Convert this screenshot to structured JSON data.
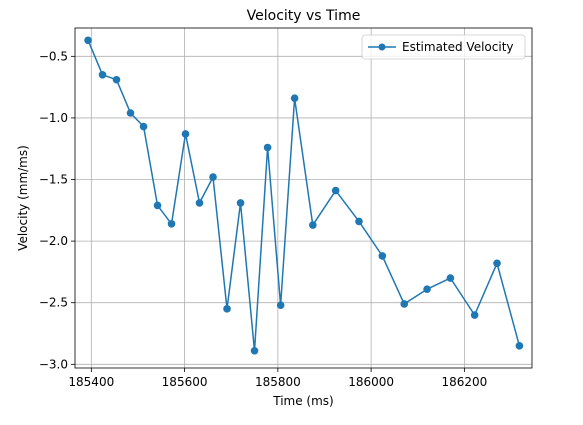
{
  "colors": {
    "series": "#1f77b4",
    "grid": "#b0b0b0",
    "legend_border": "#cccccc"
  },
  "chart_data": {
    "type": "line",
    "title": "Velocity vs Time",
    "xlabel": "Time (ms)",
    "ylabel": "Velocity (mm/ms)",
    "xlim": [
      185365,
      186345
    ],
    "ylim": [
      -3.03,
      -0.27
    ],
    "xticks": [
      185400,
      185600,
      185800,
      186000,
      186200
    ],
    "xtick_labels": [
      "185400",
      "185600",
      "185800",
      "186000",
      "186200"
    ],
    "yticks": [
      -3.0,
      -2.5,
      -2.0,
      -1.5,
      -1.0,
      -0.5
    ],
    "ytick_labels": [
      "−3.0",
      "−2.5",
      "−2.0",
      "−1.5",
      "−1.0",
      "−0.5"
    ],
    "grid": true,
    "legend_position": "upper right",
    "series": [
      {
        "name": "Estimated Velocity",
        "marker": "circle",
        "x": [
          185393,
          185424,
          185454,
          185484,
          185512,
          185542,
          185572,
          185602,
          185632,
          185661,
          185691,
          185720,
          185750,
          185778,
          185806,
          185836,
          185875,
          185924,
          185974,
          186024,
          186071,
          186120,
          186170,
          186222,
          186270,
          186318
        ],
        "y": [
          -0.37,
          -0.65,
          -0.69,
          -0.96,
          -1.07,
          -1.71,
          -1.86,
          -1.13,
          -1.69,
          -1.48,
          -2.55,
          -1.69,
          -2.89,
          -1.24,
          -2.52,
          -0.84,
          -1.87,
          -1.59,
          -1.84,
          -2.12,
          -2.51,
          -2.39,
          -2.3,
          -2.6,
          -2.18,
          -2.85
        ]
      }
    ]
  }
}
